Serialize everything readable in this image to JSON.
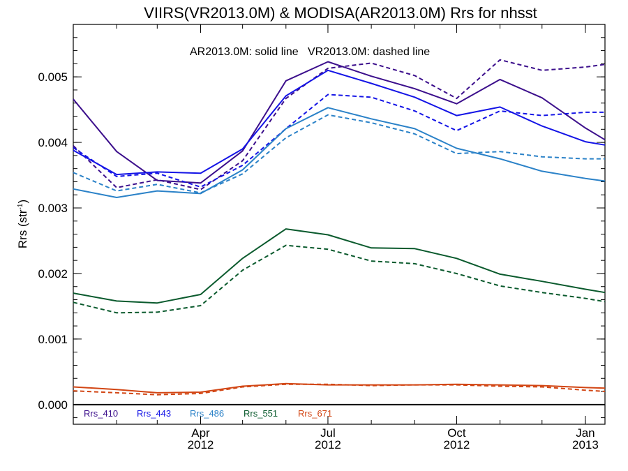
{
  "chart_data": {
    "type": "line",
    "title": "VIIRS(VR2013.0M) & MODISA(AR2013.0M)  Rrs for nhsst",
    "ylabel_main": "Rrs (str",
    "ylabel_sup": "-1",
    "ylabel_close": ")",
    "annotation": "AR2013.0M: solid line   VR2013.0M: dashed line",
    "ylim": [
      -0.0003,
      0.0058
    ],
    "yticks": [
      "0.000",
      "0.001",
      "0.002",
      "0.003",
      "0.004",
      "0.005"
    ],
    "ytick_values": [
      0,
      0.001,
      0.002,
      0.003,
      0.004,
      0.005
    ],
    "xticks": [
      {
        "month": "Apr",
        "year": "2012",
        "date": "2012-04-01"
      },
      {
        "month": "Jul",
        "year": "2012",
        "date": "2012-07-01"
      },
      {
        "month": "Oct",
        "year": "2012",
        "date": "2012-10-01"
      },
      {
        "month": "Jan",
        "year": "2013",
        "date": "2013-01-01"
      }
    ],
    "xlim": [
      "2012-01-01",
      "2013-01-15"
    ],
    "x": [
      "2012-01-01",
      "2012-02-01",
      "2012-03-01",
      "2012-04-01",
      "2012-05-01",
      "2012-06-01",
      "2012-07-01",
      "2012-08-01",
      "2012-09-01",
      "2012-10-01",
      "2012-11-01",
      "2012-12-01",
      "2013-01-01",
      "2013-01-15"
    ],
    "series": [
      {
        "name": "Rrs_410",
        "color": "#3c0f8c",
        "style": "solid",
        "values": [
          0.00466,
          0.00386,
          0.00342,
          0.00338,
          0.00387,
          0.00494,
          0.00523,
          0.00501,
          0.00482,
          0.00459,
          0.00496,
          0.00468,
          0.00422,
          0.00404
        ]
      },
      {
        "name": "Rrs_410",
        "color": "#3c0f8c",
        "style": "dashed",
        "values": [
          0.00395,
          0.00331,
          0.00343,
          0.00328,
          0.00372,
          0.00467,
          0.00513,
          0.00521,
          0.00502,
          0.00467,
          0.00526,
          0.0051,
          0.00515,
          0.00519
        ]
      },
      {
        "name": "Rrs_443",
        "color": "#1414e6",
        "style": "solid",
        "values": [
          0.00388,
          0.00351,
          0.00355,
          0.00353,
          0.0039,
          0.00471,
          0.0051,
          0.0049,
          0.00469,
          0.00441,
          0.00454,
          0.00425,
          0.00401,
          0.00396
        ]
      },
      {
        "name": "Rrs_443",
        "color": "#1414e6",
        "style": "dashed",
        "values": [
          0.00392,
          0.00348,
          0.00353,
          0.00332,
          0.00365,
          0.00421,
          0.00473,
          0.00469,
          0.00448,
          0.00418,
          0.00448,
          0.00441,
          0.00446,
          0.00446
        ]
      },
      {
        "name": "Rrs_486",
        "color": "#2b82c8",
        "style": "solid",
        "values": [
          0.00329,
          0.00316,
          0.00326,
          0.00322,
          0.00358,
          0.00421,
          0.00453,
          0.00436,
          0.00421,
          0.00391,
          0.00375,
          0.00356,
          0.00345,
          0.00341
        ]
      },
      {
        "name": "Rrs_486",
        "color": "#2b82c8",
        "style": "dashed",
        "values": [
          0.00354,
          0.00326,
          0.00336,
          0.00323,
          0.00352,
          0.00407,
          0.00442,
          0.0043,
          0.00413,
          0.00383,
          0.00386,
          0.00378,
          0.00375,
          0.00375
        ]
      },
      {
        "name": "Rrs_551",
        "color": "#0a5a2d",
        "style": "solid",
        "values": [
          0.0017,
          0.00158,
          0.00155,
          0.00168,
          0.00223,
          0.00268,
          0.00259,
          0.00239,
          0.00238,
          0.00223,
          0.00199,
          0.00188,
          0.00176,
          0.00171
        ]
      },
      {
        "name": "Rrs_551",
        "color": "#0a5a2d",
        "style": "dashed",
        "values": [
          0.00156,
          0.0014,
          0.00141,
          0.00151,
          0.00205,
          0.00243,
          0.00237,
          0.00219,
          0.00215,
          0.002,
          0.00181,
          0.00171,
          0.00162,
          0.00157
        ]
      },
      {
        "name": "Rrs_671",
        "color": "#d24614",
        "style": "solid",
        "values": [
          0.00027,
          0.00023,
          0.00018,
          0.00019,
          0.00028,
          0.00032,
          0.0003,
          0.0003,
          0.0003,
          0.00031,
          0.0003,
          0.00029,
          0.00026,
          0.00025
        ]
      },
      {
        "name": "Rrs_671",
        "color": "#d24614",
        "style": "dashed",
        "values": [
          0.00021,
          0.00018,
          0.00015,
          0.00017,
          0.00027,
          0.00031,
          0.00031,
          0.00029,
          0.0003,
          0.0003,
          0.00028,
          0.00027,
          0.00022,
          0.0002
        ]
      }
    ],
    "legend": [
      {
        "label": "Rrs_410",
        "color": "#3c0f8c"
      },
      {
        "label": "Rrs_443",
        "color": "#1414e6"
      },
      {
        "label": "Rrs_486",
        "color": "#2b82c8"
      },
      {
        "label": "Rrs_551",
        "color": "#0a5a2d"
      },
      {
        "label": "Rrs_671",
        "color": "#d24614"
      }
    ],
    "legend_placement": "bottom-left",
    "zero_line": true,
    "grid": false
  }
}
